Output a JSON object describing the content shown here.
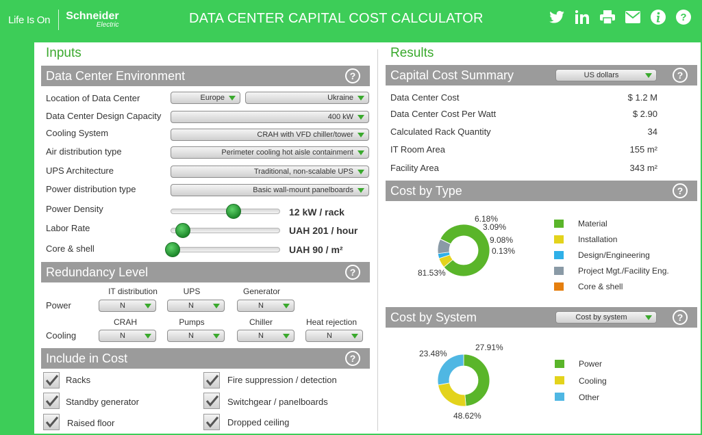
{
  "header": {
    "life_is_on": "Life Is On",
    "brand_name": "Schneider",
    "brand_sub": "Electric",
    "title": "DATA CENTER CAPITAL COST CALCULATOR"
  },
  "inputs": {
    "title": "Inputs",
    "environment": {
      "heading": "Data Center Environment",
      "help": "?",
      "location_label": "Location of Data Center",
      "region": "Europe",
      "country": "Ukraine",
      "capacity_label": "Data Center Design Capacity",
      "capacity": "400 kW",
      "cooling_label": "Cooling System",
      "cooling": "CRAH with VFD chiller/tower",
      "air_label": "Air distribution type",
      "air": "Perimeter cooling hot aisle containment",
      "ups_label": "UPS Architecture",
      "ups": "Traditional, non-scalable UPS",
      "power_dist_label": "Power distribution type",
      "power_dist": "Basic wall-mount panelboards",
      "density_label": "Power Density",
      "density_value": "12 kW / rack",
      "density_level": 0.58,
      "labor_label": "Labor Rate",
      "labor_value": "UAH 201 / hour",
      "labor_level": 0.1,
      "core_label": "Core & shell",
      "core_value": "UAH 90 / m²",
      "core_level": 0.0
    },
    "redundancy": {
      "heading": "Redundancy Level",
      "help": "?",
      "power_label": "Power",
      "cooling_label": "Cooling",
      "power_cols": [
        {
          "name": "IT distribution",
          "value": "N"
        },
        {
          "name": "UPS",
          "value": "N"
        },
        {
          "name": "Generator",
          "value": "N"
        }
      ],
      "cooling_cols": [
        {
          "name": "CRAH",
          "value": "N"
        },
        {
          "name": "Pumps",
          "value": "N"
        },
        {
          "name": "Chiller",
          "value": "N"
        },
        {
          "name": "Heat rejection",
          "value": "N"
        }
      ]
    },
    "include": {
      "heading": "Include in Cost",
      "help": "?",
      "left": [
        "Racks",
        "Standby generator",
        "Raised floor"
      ],
      "right": [
        "Fire suppression / detection",
        "Switchgear / panelboards",
        "Dropped ceiling"
      ]
    }
  },
  "results": {
    "title": "Results",
    "summary": {
      "heading": "Capital Cost Summary",
      "currency": "US dollars",
      "help": "?",
      "rows": [
        {
          "label": "Data Center Cost",
          "value": "$ 1.2 M"
        },
        {
          "label": "Data Center Cost Per Watt",
          "value": "$ 2.90"
        },
        {
          "label": "Calculated Rack Quantity",
          "value": "34"
        },
        {
          "label": "IT Room Area",
          "value": "155 m²"
        },
        {
          "label": "Facility Area",
          "value": "343 m²"
        }
      ]
    },
    "by_type": {
      "heading": "Cost by Type",
      "help": "?",
      "legend": [
        "Material",
        "Installation",
        "Design/Engineering",
        "Project Mgt./Facility Eng.",
        "Core & shell"
      ],
      "colors": [
        "#5ab52a",
        "#e3d31c",
        "#2fb0e8",
        "#8a9aa6",
        "#e57f0f"
      ],
      "labels": [
        "81.53%",
        "6.18%",
        "3.09%",
        "9.08%",
        "0.13%"
      ]
    },
    "by_system": {
      "heading": "Cost by System",
      "selector": "Cost by system",
      "help": "?",
      "legend": [
        "Power",
        "Cooling",
        "Other"
      ],
      "colors": [
        "#5ab52a",
        "#e3d31c",
        "#4fb7e3"
      ],
      "labels": [
        "48.62%",
        "23.48%",
        "27.91%"
      ]
    }
  },
  "chart_data": [
    {
      "type": "pie",
      "title": "Cost by Type",
      "categories": [
        "Material",
        "Installation",
        "Design/Engineering",
        "Project Mgt./Facility Eng.",
        "Core & shell"
      ],
      "values": [
        81.53,
        6.18,
        3.09,
        9.08,
        0.13
      ]
    },
    {
      "type": "pie",
      "title": "Cost by System",
      "categories": [
        "Power",
        "Cooling",
        "Other"
      ],
      "values": [
        48.62,
        23.48,
        27.91
      ]
    }
  ]
}
